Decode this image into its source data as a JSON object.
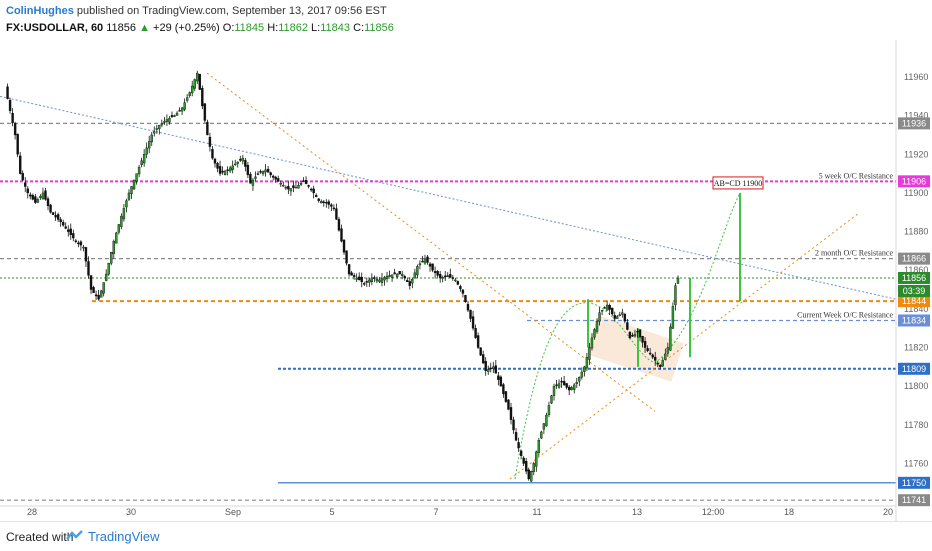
{
  "header": {
    "author": "ColinHughes",
    "published": "published on TradingView.com, September 13, 2017 09:56 EST",
    "symbol": "FX:USDOLLAR, 60",
    "last": "11856",
    "change": "+29 (+0.25%)",
    "ohlc": {
      "o": "11845",
      "h": "11862",
      "l": "11843",
      "c": "11856"
    }
  },
  "footer": {
    "created_with": "Created with",
    "brand": "TradingView"
  },
  "chart_data": {
    "type": "candlestick",
    "title": "FX:USDOLLAR, 60",
    "ylim": [
      11738,
      11975
    ],
    "y_ticks": [
      11760,
      11780,
      11800,
      11820,
      11840,
      11860,
      11880,
      11900,
      11920,
      11940,
      11960
    ],
    "x_ticks": [
      "28",
      "30",
      "Sep",
      "5",
      "7",
      "11",
      "13",
      "12:00",
      "18",
      "20"
    ],
    "grid": false,
    "price_path": [
      [
        0,
        11955
      ],
      [
        4,
        11930
      ],
      [
        6,
        11910
      ],
      [
        9,
        11900
      ],
      [
        12,
        11895
      ],
      [
        15,
        11900
      ],
      [
        18,
        11890
      ],
      [
        22,
        11885
      ],
      [
        25,
        11880
      ],
      [
        28,
        11875
      ],
      [
        31,
        11872
      ],
      [
        34,
        11850
      ],
      [
        37,
        11845
      ],
      [
        40,
        11858
      ],
      [
        43,
        11875
      ],
      [
        46,
        11888
      ],
      [
        49,
        11900
      ],
      [
        52,
        11910
      ],
      [
        55,
        11920
      ],
      [
        58,
        11930
      ],
      [
        61,
        11935
      ],
      [
        64,
        11938
      ],
      [
        67,
        11940
      ],
      [
        70,
        11944
      ],
      [
        73,
        11952
      ],
      [
        76,
        11962
      ],
      [
        78,
        11945
      ],
      [
        80,
        11930
      ],
      [
        82,
        11918
      ],
      [
        85,
        11910
      ],
      [
        88,
        11912
      ],
      [
        91,
        11915
      ],
      [
        94,
        11918
      ],
      [
        97,
        11905
      ],
      [
        100,
        11910
      ],
      [
        103,
        11912
      ],
      [
        106,
        11908
      ],
      [
        109,
        11905
      ],
      [
        112,
        11902
      ],
      [
        115,
        11903
      ],
      [
        118,
        11906
      ],
      [
        121,
        11902
      ],
      [
        124,
        11896
      ],
      [
        127,
        11895
      ],
      [
        130,
        11892
      ],
      [
        133,
        11875
      ],
      [
        136,
        11858
      ],
      [
        139,
        11856
      ],
      [
        142,
        11853
      ],
      [
        145,
        11856
      ],
      [
        148,
        11855
      ],
      [
        151,
        11857
      ],
      [
        154,
        11858
      ],
      [
        157,
        11858
      ],
      [
        160,
        11852
      ],
      [
        163,
        11862
      ],
      [
        166,
        11866
      ],
      [
        169,
        11860
      ],
      [
        172,
        11856
      ],
      [
        175,
        11857
      ],
      [
        178,
        11855
      ],
      [
        181,
        11848
      ],
      [
        184,
        11835
      ],
      [
        187,
        11820
      ],
      [
        190,
        11808
      ],
      [
        193,
        11810
      ],
      [
        196,
        11800
      ],
      [
        199,
        11788
      ],
      [
        202,
        11772
      ],
      [
        205,
        11760
      ],
      [
        207,
        11752
      ],
      [
        209,
        11760
      ],
      [
        211,
        11772
      ],
      [
        214,
        11785
      ],
      [
        217,
        11800
      ],
      [
        220,
        11802
      ],
      [
        223,
        11798
      ],
      [
        226,
        11802
      ],
      [
        229,
        11810
      ],
      [
        232,
        11825
      ],
      [
        235,
        11838
      ],
      [
        238,
        11842
      ],
      [
        241,
        11835
      ],
      [
        244,
        11838
      ],
      [
        247,
        11825
      ],
      [
        250,
        11828
      ],
      [
        253,
        11820
      ],
      [
        256,
        11815
      ],
      [
        259,
        11810
      ],
      [
        262,
        11820
      ],
      [
        265,
        11852
      ],
      [
        266,
        11856
      ]
    ],
    "series": [
      {
        "name": "Resistance",
        "values": [
          11936,
          11906,
          11866,
          11844,
          11834,
          11809,
          11750,
          11741
        ]
      }
    ],
    "horizontal_levels": [
      {
        "price": 11936,
        "label": "11936",
        "color": "#8a8a8a",
        "style": "dash",
        "note": ""
      },
      {
        "price": 11906,
        "label": "11906",
        "color": "#e83ad8",
        "style": "dash",
        "note": "5 week O/C Resistance"
      },
      {
        "price": 11866,
        "label": "11866",
        "color": "#8a8a8a",
        "style": "dash",
        "note": "2 month O/C Resistance"
      },
      {
        "price": 11844,
        "label": "11844",
        "color": "#f08a0c",
        "style": "dash",
        "note": ""
      },
      {
        "price": 11834,
        "label": "11834",
        "color": "#6b8fd6",
        "style": "dash",
        "note": "Current Week O/C Resistance"
      },
      {
        "price": 11809,
        "label": "11809",
        "color": "#2e6fc8",
        "style": "dash",
        "note": ""
      },
      {
        "price": 11750,
        "label": "11750",
        "color": "#2e6fc8",
        "style": "solid",
        "note": ""
      },
      {
        "price": 11741,
        "label": "11741",
        "color": "#8a8a8a",
        "style": "dash",
        "note": ""
      }
    ],
    "price_badges": [
      {
        "text": "11856",
        "color": "#2b8a2b"
      },
      {
        "text": "03:39",
        "color": "#2b8a2b"
      }
    ],
    "annotations": [
      {
        "text": "AB=CD 11900",
        "color": "#d81a1a"
      }
    ],
    "colors": {
      "up": "#2b9a2b",
      "down": "#111111",
      "magenta": "#e83ad8",
      "orange": "#f08a0c",
      "blue": "#2e6fc8"
    }
  }
}
